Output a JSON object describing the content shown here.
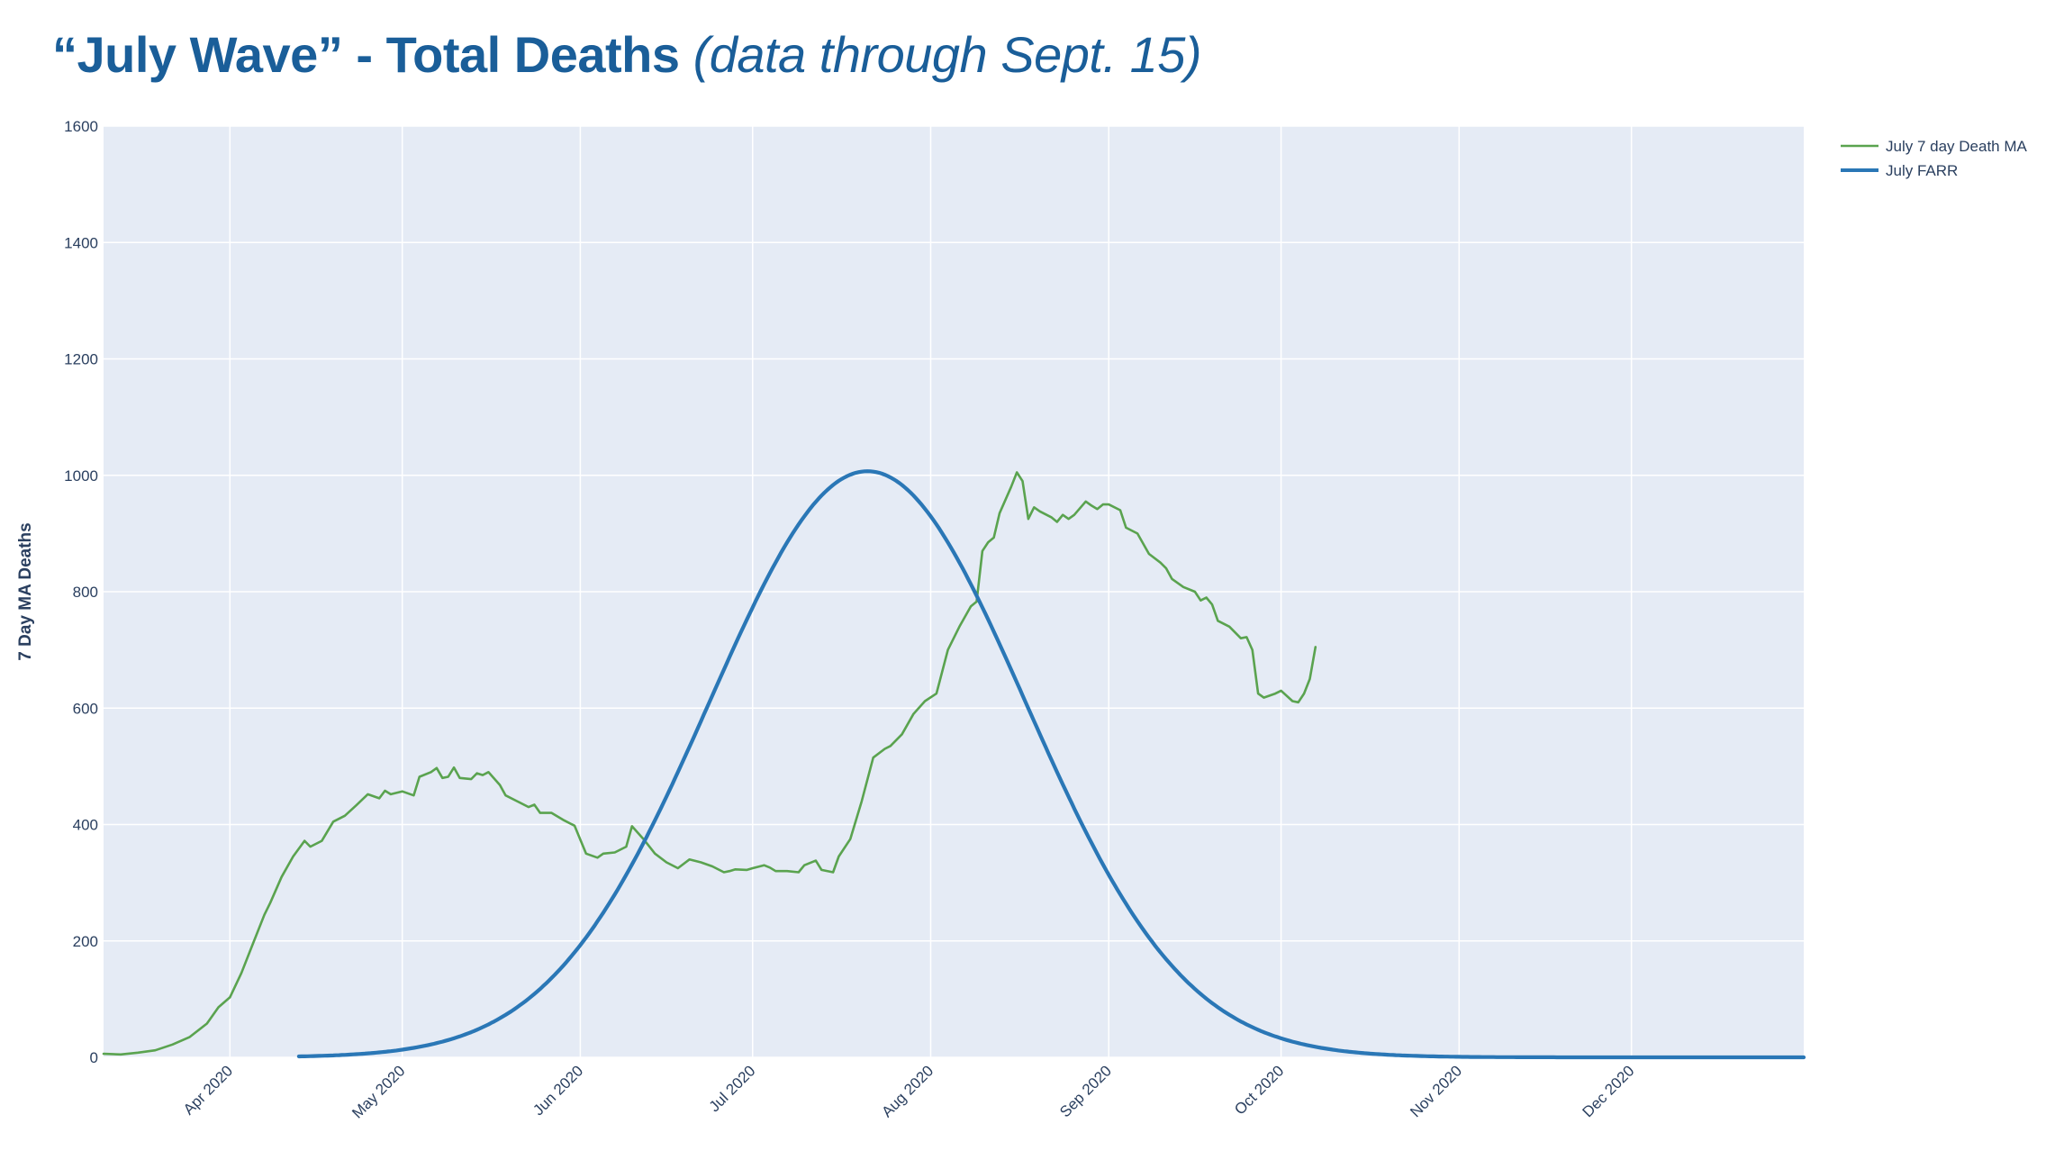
{
  "title": {
    "main": "“July Wave” - Total Deaths",
    "sub": "(data through Sept. 15)"
  },
  "chart_data": {
    "type": "line",
    "ylabel": "7 Day MA Deaths",
    "xlabel": "",
    "ylim": [
      0,
      1600
    ],
    "xlim": [
      "2020-03-10",
      "2020-12-31"
    ],
    "yticks": [
      0,
      200,
      400,
      600,
      800,
      1000,
      1200,
      1400,
      1600
    ],
    "xticks": [
      {
        "date": "2020-04-01",
        "label": "Apr 2020"
      },
      {
        "date": "2020-05-01",
        "label": "May 2020"
      },
      {
        "date": "2020-06-01",
        "label": "Jun 2020"
      },
      {
        "date": "2020-07-01",
        "label": "Jul 2020"
      },
      {
        "date": "2020-08-01",
        "label": "Aug 2020"
      },
      {
        "date": "2020-09-01",
        "label": "Sep 2020"
      },
      {
        "date": "2020-10-01",
        "label": "Oct 2020"
      },
      {
        "date": "2020-11-01",
        "label": "Nov 2020"
      },
      {
        "date": "2020-12-01",
        "label": "Dec 2020"
      }
    ],
    "grid": true,
    "legend_position": "top-right",
    "series": [
      {
        "name": "July 7 day Death MA",
        "color": "#5aa34f",
        "points": [
          [
            "2020-03-10",
            6
          ],
          [
            "2020-03-13",
            5
          ],
          [
            "2020-03-16",
            8
          ],
          [
            "2020-03-19",
            12
          ],
          [
            "2020-03-22",
            22
          ],
          [
            "2020-03-25",
            35
          ],
          [
            "2020-03-28",
            58
          ],
          [
            "2020-03-30",
            86
          ],
          [
            "2020-04-01",
            103
          ],
          [
            "2020-04-03",
            145
          ],
          [
            "2020-04-05",
            195
          ],
          [
            "2020-04-07",
            245
          ],
          [
            "2020-04-08",
            265
          ],
          [
            "2020-04-10",
            310
          ],
          [
            "2020-04-12",
            345
          ],
          [
            "2020-04-14",
            372
          ],
          [
            "2020-04-15",
            362
          ],
          [
            "2020-04-17",
            372
          ],
          [
            "2020-04-19",
            405
          ],
          [
            "2020-04-21",
            415
          ],
          [
            "2020-04-23",
            433
          ],
          [
            "2020-04-25",
            452
          ],
          [
            "2020-04-27",
            445
          ],
          [
            "2020-04-28",
            458
          ],
          [
            "2020-04-29",
            452
          ],
          [
            "2020-05-01",
            457
          ],
          [
            "2020-05-03",
            450
          ],
          [
            "2020-05-04",
            482
          ],
          [
            "2020-05-06",
            490
          ],
          [
            "2020-05-07",
            497
          ],
          [
            "2020-05-08",
            480
          ],
          [
            "2020-05-09",
            482
          ],
          [
            "2020-05-10",
            498
          ],
          [
            "2020-05-11",
            480
          ],
          [
            "2020-05-13",
            478
          ],
          [
            "2020-05-14",
            488
          ],
          [
            "2020-05-15",
            485
          ],
          [
            "2020-05-16",
            490
          ],
          [
            "2020-05-18",
            468
          ],
          [
            "2020-05-19",
            450
          ],
          [
            "2020-05-21",
            440
          ],
          [
            "2020-05-23",
            430
          ],
          [
            "2020-05-24",
            434
          ],
          [
            "2020-05-25",
            420
          ],
          [
            "2020-05-27",
            420
          ],
          [
            "2020-05-29",
            408
          ],
          [
            "2020-05-31",
            398
          ],
          [
            "2020-06-02",
            350
          ],
          [
            "2020-06-04",
            343
          ],
          [
            "2020-06-05",
            350
          ],
          [
            "2020-06-07",
            352
          ],
          [
            "2020-06-09",
            362
          ],
          [
            "2020-06-10",
            397
          ],
          [
            "2020-06-12",
            375
          ],
          [
            "2020-06-14",
            350
          ],
          [
            "2020-06-16",
            335
          ],
          [
            "2020-06-18",
            325
          ],
          [
            "2020-06-20",
            340
          ],
          [
            "2020-06-22",
            335
          ],
          [
            "2020-06-24",
            328
          ],
          [
            "2020-06-26",
            318
          ],
          [
            "2020-06-27",
            320
          ],
          [
            "2020-06-28",
            323
          ],
          [
            "2020-06-30",
            322
          ],
          [
            "2020-07-01",
            325
          ],
          [
            "2020-07-03",
            330
          ],
          [
            "2020-07-04",
            326
          ],
          [
            "2020-07-05",
            320
          ],
          [
            "2020-07-07",
            320
          ],
          [
            "2020-07-09",
            318
          ],
          [
            "2020-07-10",
            330
          ],
          [
            "2020-07-12",
            338
          ],
          [
            "2020-07-13",
            322
          ],
          [
            "2020-07-15",
            318
          ],
          [
            "2020-07-16",
            345
          ],
          [
            "2020-07-18",
            375
          ],
          [
            "2020-07-20",
            440
          ],
          [
            "2020-07-22",
            515
          ],
          [
            "2020-07-24",
            530
          ],
          [
            "2020-07-25",
            535
          ],
          [
            "2020-07-27",
            555
          ],
          [
            "2020-07-29",
            590
          ],
          [
            "2020-07-31",
            612
          ],
          [
            "2020-08-02",
            625
          ],
          [
            "2020-08-04",
            700
          ],
          [
            "2020-08-06",
            740
          ],
          [
            "2020-08-08",
            775
          ],
          [
            "2020-08-09",
            783
          ],
          [
            "2020-08-10",
            870
          ],
          [
            "2020-08-11",
            885
          ],
          [
            "2020-08-12",
            893
          ],
          [
            "2020-08-13",
            935
          ],
          [
            "2020-08-15",
            980
          ],
          [
            "2020-08-16",
            1005
          ],
          [
            "2020-08-17",
            990
          ],
          [
            "2020-08-18",
            925
          ],
          [
            "2020-08-19",
            945
          ],
          [
            "2020-08-20",
            938
          ],
          [
            "2020-08-22",
            928
          ],
          [
            "2020-08-23",
            920
          ],
          [
            "2020-08-24",
            932
          ],
          [
            "2020-08-25",
            925
          ],
          [
            "2020-08-26",
            932
          ],
          [
            "2020-08-28",
            955
          ],
          [
            "2020-08-29",
            948
          ],
          [
            "2020-08-30",
            942
          ],
          [
            "2020-08-31",
            950
          ],
          [
            "2020-09-01",
            950
          ],
          [
            "2020-09-03",
            940
          ],
          [
            "2020-09-04",
            910
          ],
          [
            "2020-09-06",
            900
          ],
          [
            "2020-09-08",
            865
          ],
          [
            "2020-09-10",
            850
          ],
          [
            "2020-09-11",
            840
          ],
          [
            "2020-09-12",
            822
          ],
          [
            "2020-09-14",
            808
          ],
          [
            "2020-09-16",
            800
          ],
          [
            "2020-09-17",
            785
          ],
          [
            "2020-09-18",
            790
          ],
          [
            "2020-09-19",
            778
          ],
          [
            "2020-09-20",
            750
          ],
          [
            "2020-09-22",
            740
          ],
          [
            "2020-09-24",
            720
          ],
          [
            "2020-09-25",
            722
          ],
          [
            "2020-09-26",
            700
          ],
          [
            "2020-09-27",
            625
          ],
          [
            "2020-09-28",
            618
          ],
          [
            "2020-09-30",
            625
          ],
          [
            "2020-10-01",
            630
          ],
          [
            "2020-10-03",
            612
          ],
          [
            "2020-10-04",
            610
          ],
          [
            "2020-10-05",
            625
          ],
          [
            "2020-10-06",
            650
          ],
          [
            "2020-10-07",
            705
          ]
        ]
      },
      {
        "name": "July FARR",
        "color": "#2a77b6",
        "peak_value": 1007,
        "peak_date": "2020-07-21",
        "sigma_days": 27.5,
        "start_date": "2020-04-13",
        "end_date": "2020-12-31"
      }
    ]
  },
  "colors": {
    "plot_background": "#e5ebf5",
    "gridline": "#ffffff",
    "title": "#1a5e99",
    "text": "#2a3f5f"
  }
}
